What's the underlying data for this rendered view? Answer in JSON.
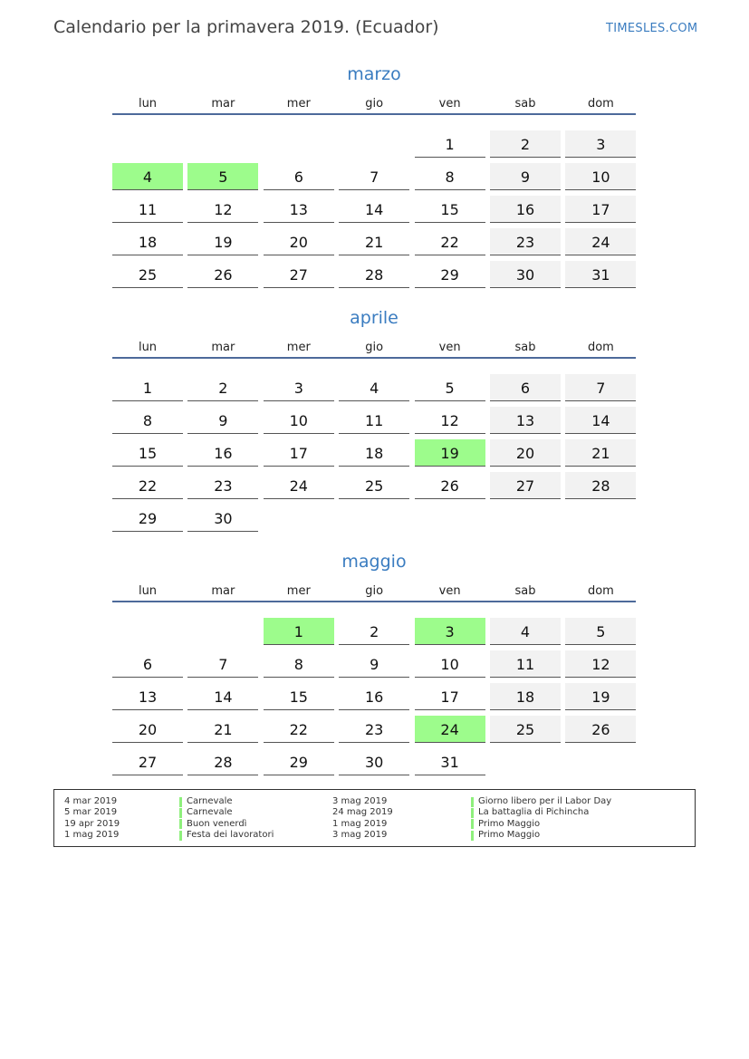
{
  "title": "Calendario per la primavera 2019. (Ecuador)",
  "brand": "TIMESLES.COM",
  "weekdays": [
    "lun",
    "mar",
    "mer",
    "gio",
    "ven",
    "sab",
    "dom"
  ],
  "colors": {
    "holiday": "#9dfc8c",
    "weekend": "#f2f2f2",
    "accent": "#3a7cc0"
  },
  "months": [
    {
      "name": "marzo",
      "weeks": [
        [
          null,
          null,
          null,
          null,
          1,
          2,
          3
        ],
        [
          4,
          5,
          6,
          7,
          8,
          9,
          10
        ],
        [
          11,
          12,
          13,
          14,
          15,
          16,
          17
        ],
        [
          18,
          19,
          20,
          21,
          22,
          23,
          24
        ],
        [
          25,
          26,
          27,
          28,
          29,
          30,
          31
        ]
      ],
      "holidays": [
        4,
        5
      ]
    },
    {
      "name": "aprile",
      "weeks": [
        [
          1,
          2,
          3,
          4,
          5,
          6,
          7
        ],
        [
          8,
          9,
          10,
          11,
          12,
          13,
          14
        ],
        [
          15,
          16,
          17,
          18,
          19,
          20,
          21
        ],
        [
          22,
          23,
          24,
          25,
          26,
          27,
          28
        ],
        [
          29,
          30,
          null,
          null,
          null,
          null,
          null
        ]
      ],
      "holidays": [
        19
      ]
    },
    {
      "name": "maggio",
      "weeks": [
        [
          null,
          null,
          1,
          2,
          3,
          4,
          5
        ],
        [
          6,
          7,
          8,
          9,
          10,
          11,
          12
        ],
        [
          13,
          14,
          15,
          16,
          17,
          18,
          19
        ],
        [
          20,
          21,
          22,
          23,
          24,
          25,
          26
        ],
        [
          27,
          28,
          29,
          30,
          31,
          null,
          null
        ]
      ],
      "holidays": [
        1,
        3,
        24
      ]
    }
  ],
  "legend": [
    {
      "date": "4 mar 2019",
      "name": "Carnevale"
    },
    {
      "date": "5 mar 2019",
      "name": "Carnevale"
    },
    {
      "date": "19 apr 2019",
      "name": "Buon venerdì"
    },
    {
      "date": "1 mag 2019",
      "name": "Festa dei lavoratori"
    },
    {
      "date": "3 mag 2019",
      "name": "Giorno libero per il Labor Day"
    },
    {
      "date": "24 mag 2019",
      "name": "La battaglia di Pichincha"
    },
    {
      "date": "1 mag 2019",
      "name": "Primo Maggio"
    },
    {
      "date": "3 mag 2019",
      "name": "Primo Maggio"
    }
  ]
}
